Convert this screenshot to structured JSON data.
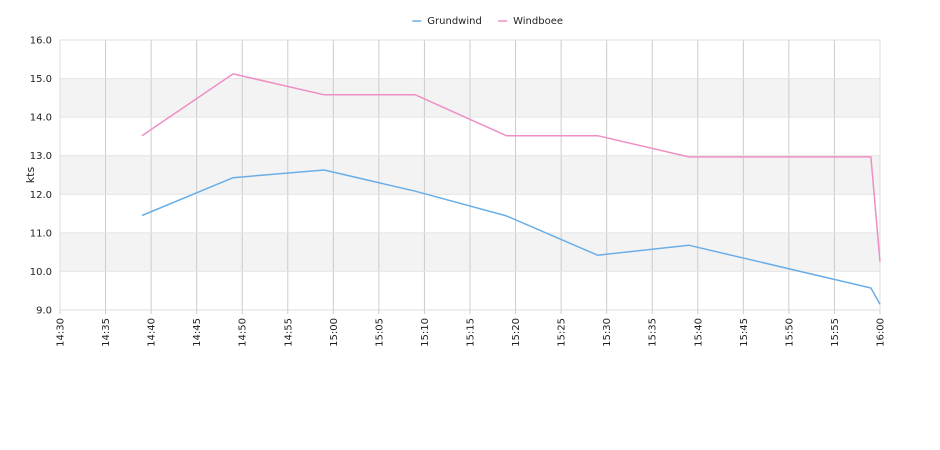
{
  "chart_data": {
    "type": "line",
    "title": "",
    "xlabel": "",
    "ylabel": "kts",
    "ylim": [
      9.0,
      16.0
    ],
    "y_ticks": [
      "9.0",
      "10.0",
      "11.0",
      "12.0",
      "13.0",
      "14.0",
      "15.0",
      "16.0"
    ],
    "xlim": [
      "14:30",
      "16:00"
    ],
    "x_ticks": [
      "14:30",
      "14:35",
      "14:40",
      "14:45",
      "14:50",
      "14:55",
      "15:00",
      "15:05",
      "15:10",
      "15:15",
      "15:20",
      "15:25",
      "15:30",
      "15:35",
      "15:40",
      "15:45",
      "15:50",
      "15:55",
      "16:00"
    ],
    "grid": true,
    "legend_position": "top-center",
    "series": [
      {
        "name": "Grundwind",
        "color": "#6aaee8",
        "x": [
          "14:39",
          "14:49",
          "14:59",
          "15:09",
          "15:19",
          "15:29",
          "15:39",
          "15:59",
          "16:00"
        ],
        "y": [
          11.45,
          12.43,
          12.63,
          12.08,
          11.44,
          10.42,
          10.68,
          9.57,
          9.15
        ]
      },
      {
        "name": "Windboee",
        "color": "#ee8fc4",
        "x": [
          "14:39",
          "14:49",
          "14:59",
          "15:09",
          "15:19",
          "15:29",
          "15:39",
          "15:59",
          "16:00"
        ],
        "y": [
          13.52,
          15.12,
          14.58,
          14.58,
          13.52,
          13.52,
          12.97,
          12.97,
          10.25
        ]
      }
    ]
  }
}
